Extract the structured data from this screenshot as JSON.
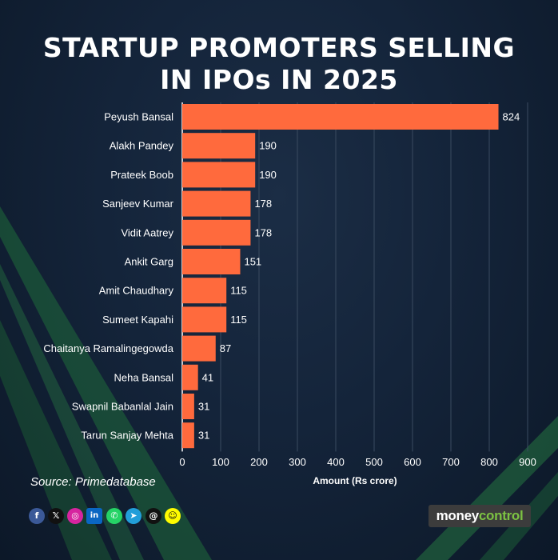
{
  "title_line1": "STARTUP PROMOTERS SELLING",
  "title_line2": "IN IPOs IN 2025",
  "source": "Source: Primedatabase",
  "logo": {
    "part1": "money",
    "part2": "control"
  },
  "social_icons": [
    "facebook-icon",
    "x-icon",
    "instagram-icon",
    "linkedin-icon",
    "whatsapp-icon",
    "telegram-icon",
    "threads-icon",
    "snapchat-icon"
  ],
  "colors": {
    "bar": "#ff6a3d",
    "text": "#ffffff",
    "background": "#14243a",
    "accent": "#7cc242"
  },
  "chart_data": {
    "type": "bar",
    "orientation": "horizontal",
    "categories": [
      "Peyush Bansal",
      "Alakh Pandey",
      "Prateek Boob",
      "Sanjeev Kumar",
      "Vidit Aatrey",
      "Ankit Garg",
      "Amit Chaudhary",
      "Sumeet Kapahi",
      "Chaitanya Ramalingegowda",
      "Neha Bansal",
      "Swapnil Babanlal Jain",
      "Tarun Sanjay Mehta"
    ],
    "values": [
      824,
      190,
      190,
      178,
      178,
      151,
      115,
      115,
      87,
      41,
      31,
      31
    ],
    "xlabel": "Amount (Rs crore)",
    "ylabel": "",
    "xlim": [
      0,
      900
    ],
    "xticks": [
      0,
      100,
      200,
      300,
      400,
      500,
      600,
      700,
      800,
      900
    ],
    "grid": true
  }
}
